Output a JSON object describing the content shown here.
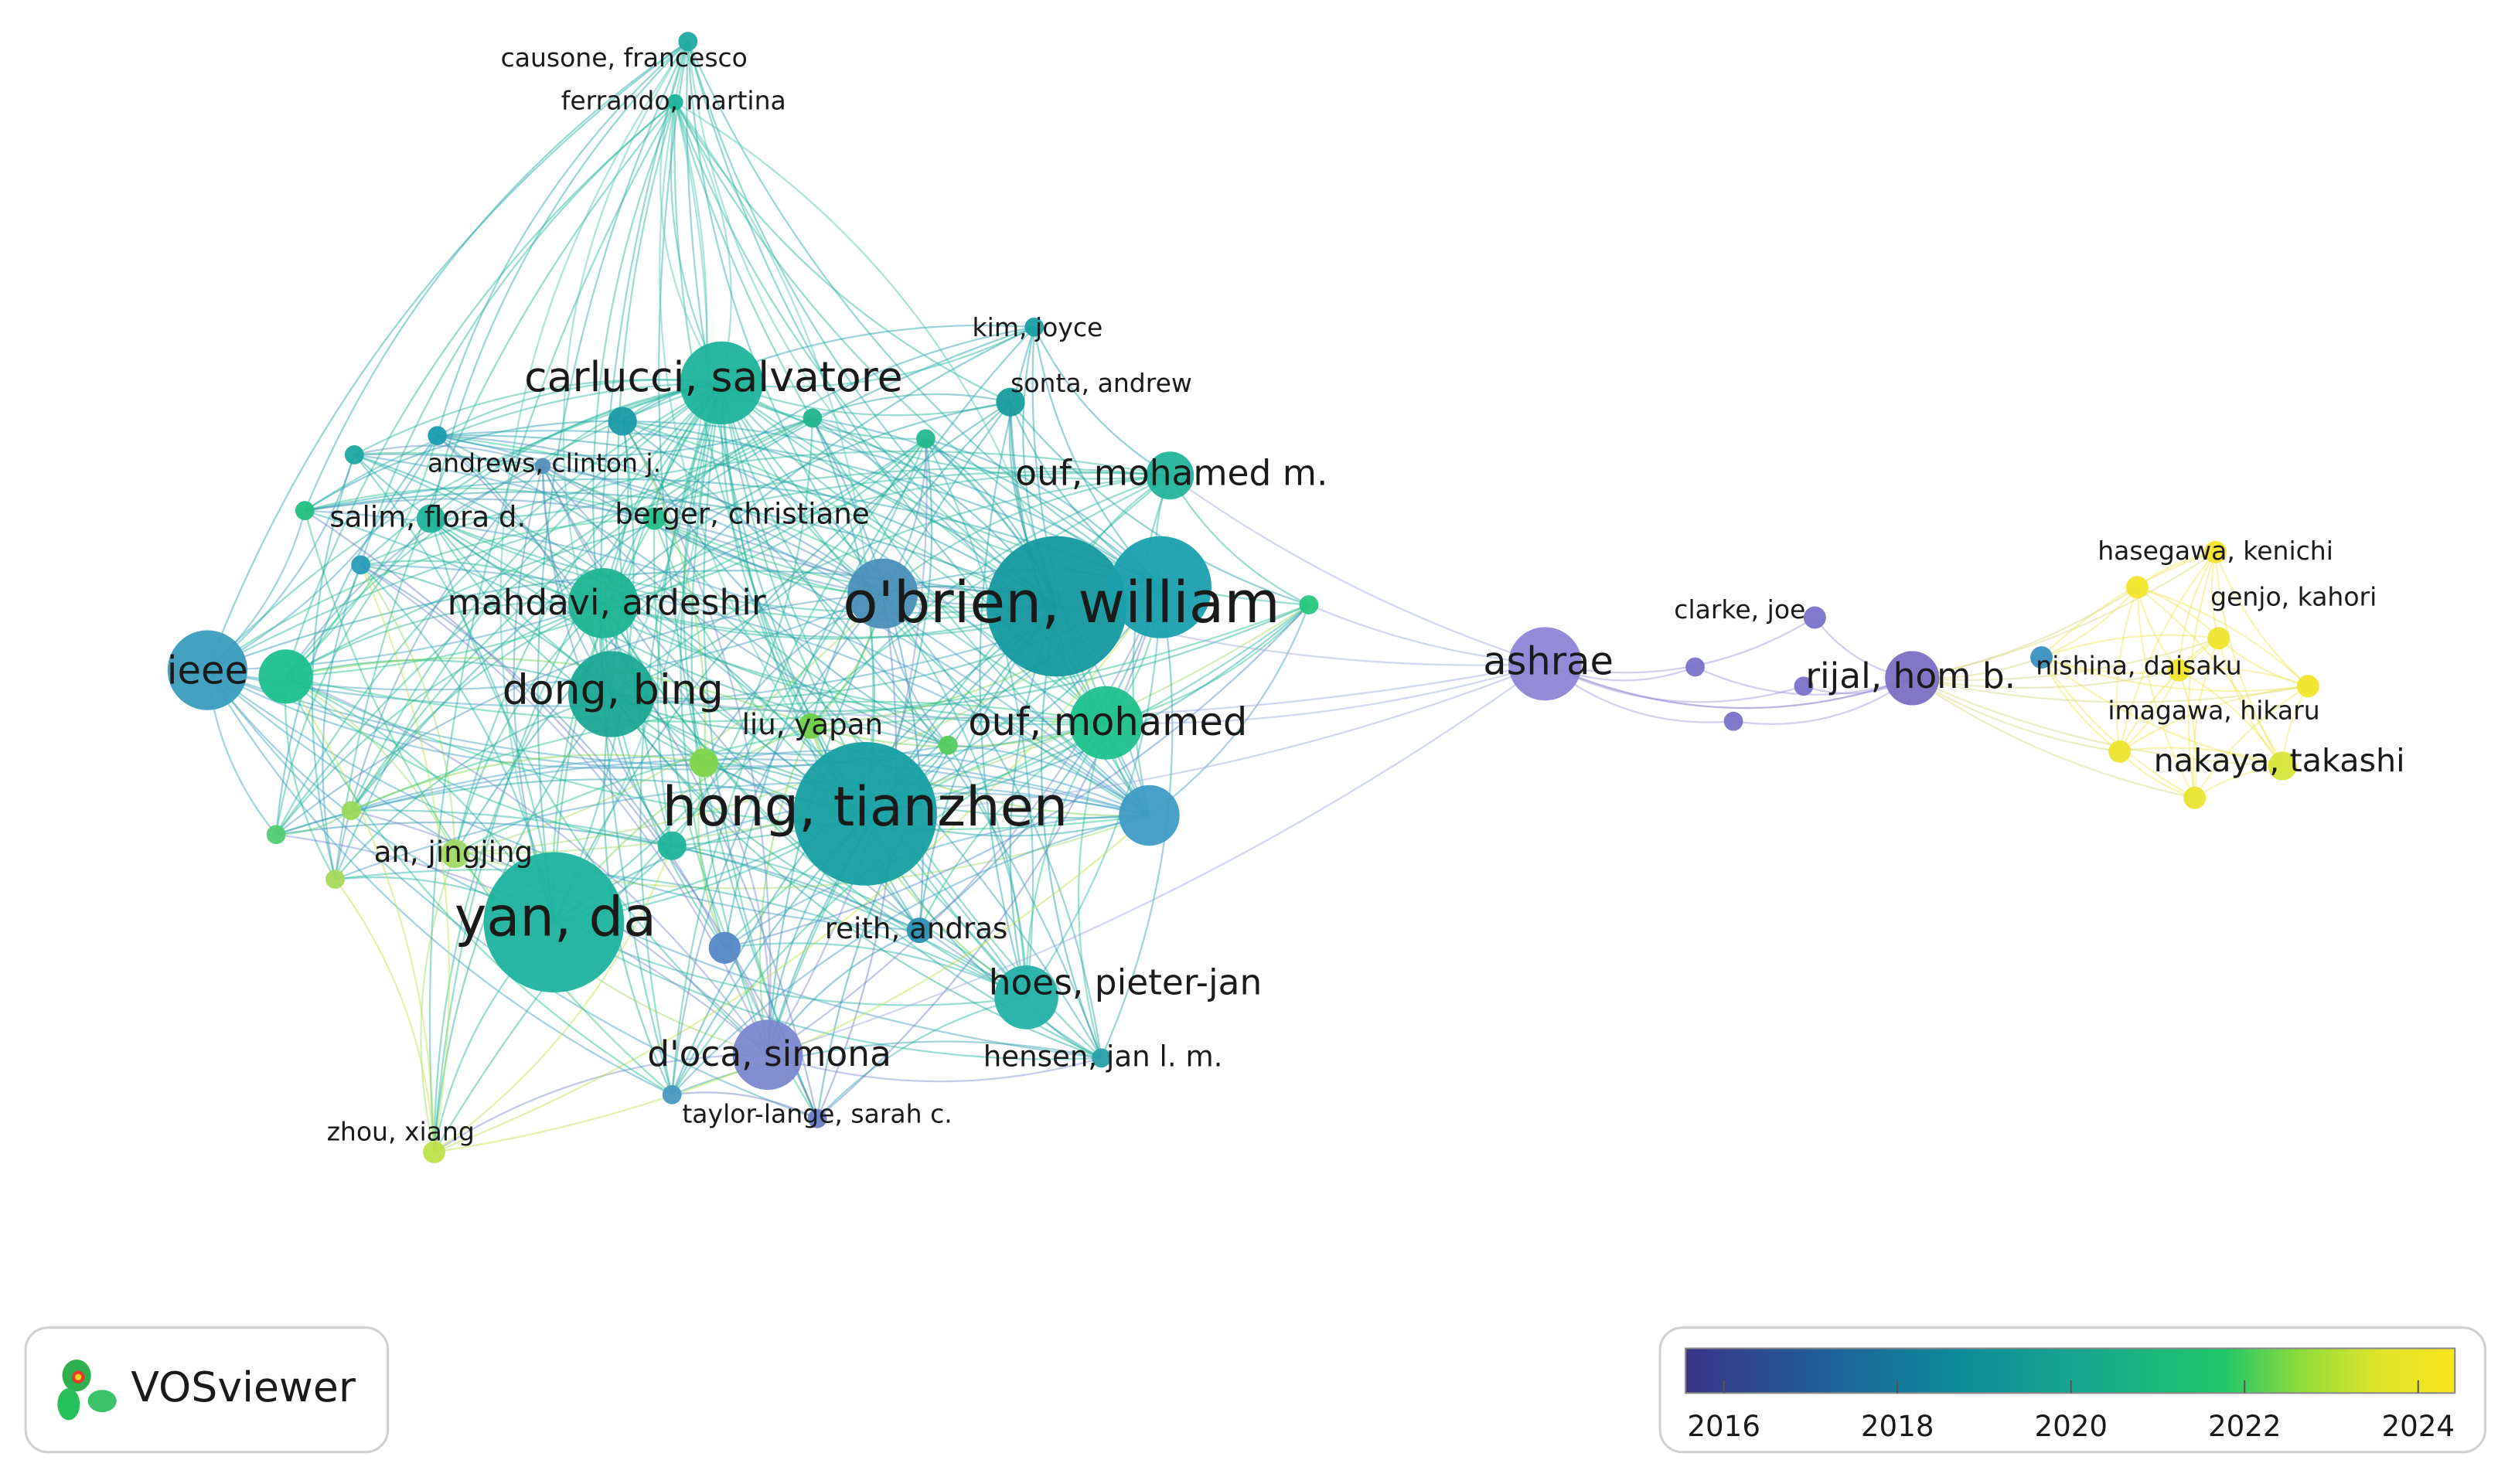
{
  "nodes": [
    {
      "label": "causone, francesco"
    },
    {
      "label": "ferrando, martina"
    },
    {
      "label": "carlucci, salvatore"
    },
    {
      "label": "kim, joyce"
    },
    {
      "label": "sonta, andrew"
    },
    {
      "label": "ouf, mohamed m."
    },
    {
      "label": "andrews, clinton j."
    },
    {
      "label": "salim, flora d."
    },
    {
      "label": "berger, christiane"
    },
    {
      "label": "mahdavi, ardeshir"
    },
    {
      "label": "o'brien, william"
    },
    {
      "label": "ieee"
    },
    {
      "label": "dong, bing"
    },
    {
      "label": "liu, yapan"
    },
    {
      "label": "ouf, mohamed"
    },
    {
      "label": "hong, tianzhen"
    },
    {
      "label": "an, jingjing"
    },
    {
      "label": "yan, da"
    },
    {
      "label": "reith, andras"
    },
    {
      "label": "hoes, pieter-jan"
    },
    {
      "label": "d'oca, simona"
    },
    {
      "label": "hensen, jan l. m."
    },
    {
      "label": "taylor-lange, sarah c."
    },
    {
      "label": "zhou, xiang"
    },
    {
      "label": "ashrae"
    },
    {
      "label": "clarke, joe"
    },
    {
      "label": "rijal, hom b."
    },
    {
      "label": "hasegawa, kenichi"
    },
    {
      "label": "genjo, kahori"
    },
    {
      "label": "nishina, daisaku"
    },
    {
      "label": "imagawa, hikaru"
    },
    {
      "label": "nakaya, takashi"
    }
  ],
  "legend": {
    "logo": "VOSviewer",
    "ticks": [
      2016,
      2018,
      2020,
      2022,
      2024
    ]
  }
}
